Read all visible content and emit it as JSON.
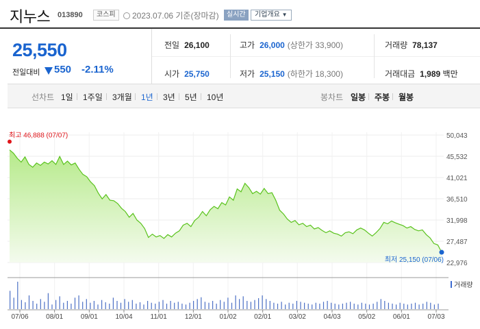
{
  "header": {
    "name": "지누스",
    "code": "013890",
    "market": "코스피",
    "date": "2023.07.06 기준(장마감)",
    "realtime": "실시간",
    "company_info": "기업개요"
  },
  "summary": {
    "price": "25,550",
    "prev_label": "전일대비",
    "change": "550",
    "change_pct": "-2.11%",
    "direction": "down"
  },
  "stats": {
    "prev_close": {
      "label": "전일",
      "value": "26,100"
    },
    "high": {
      "label": "고가",
      "value": "26,000",
      "sub": "(상한가 33,900)"
    },
    "volume": {
      "label": "거래량",
      "value": "78,137"
    },
    "open": {
      "label": "시가",
      "value": "25,750"
    },
    "low": {
      "label": "저가",
      "value": "25,150",
      "sub": "(하한가 18,300)"
    },
    "amount": {
      "label": "거래대금",
      "value": "1,989",
      "unit": "백만"
    }
  },
  "tabs": {
    "line_label": "선차트",
    "line": [
      "1일",
      "1주일",
      "3개월",
      "1년",
      "3년",
      "5년",
      "10년"
    ],
    "line_active": "1년",
    "candle_label": "봉차트",
    "candle": [
      "일봉",
      "주봉",
      "월봉"
    ]
  },
  "chart_data": {
    "type": "area",
    "ylim": [
      22976,
      50043
    ],
    "y_ticks": [
      "50,043",
      "45,532",
      "41,021",
      "36,510",
      "31,998",
      "27,487",
      "22,976"
    ],
    "x_ticks": [
      "07/06",
      "08/01",
      "09/01",
      "10/04",
      "11/01",
      "12/01",
      "01/02",
      "02/01",
      "03/02",
      "04/03",
      "05/02",
      "06/01",
      "07/03"
    ],
    "max_label": "최고 46,888 (07/07)",
    "min_label": "최저 25,150 (07/06)",
    "volume_label": "거래량",
    "series": [
      {
        "values": [
          46888,
          46200,
          45100,
          44300,
          45400,
          43800,
          43200,
          44100,
          43600,
          44300,
          43900,
          44600,
          43800,
          45500,
          43800,
          44500,
          43700,
          44100,
          42800,
          41700,
          41200,
          40100,
          39300,
          37700,
          36500,
          37400,
          36200,
          36100,
          35500,
          34500,
          33800,
          32600,
          33400,
          32000,
          31300,
          30200,
          28300,
          29000,
          28400,
          28700,
          28100,
          28900,
          28400,
          29200,
          29700,
          30900,
          31300,
          30600,
          31900,
          32600,
          33800,
          32900,
          34200,
          34900,
          34400,
          35700,
          35200,
          36900,
          36200,
          38600,
          38000,
          39800,
          38900,
          37600,
          38100,
          37500,
          38700,
          37600,
          37800,
          36200,
          34100,
          33300,
          32200,
          31500,
          31900,
          31000,
          31300,
          30600,
          30900,
          30100,
          30400,
          29800,
          29300,
          29700,
          29200,
          29000,
          28600,
          29300,
          29500,
          29100,
          29900,
          30300,
          29900,
          29200,
          28600,
          29300,
          30200,
          31500,
          31200,
          31800,
          31400,
          31100,
          30800,
          30300,
          30600,
          30000,
          29700,
          29900,
          28900,
          28200,
          27000,
          26700,
          25150
        ]
      }
    ],
    "volume": [
      40,
      25,
      60,
      20,
      15,
      30,
      18,
      12,
      22,
      16,
      35,
      10,
      20,
      28,
      14,
      18,
      12,
      25,
      30,
      16,
      22,
      14,
      18,
      10,
      20,
      15,
      12,
      25,
      18,
      14,
      22,
      16,
      20,
      12,
      15,
      10,
      18,
      14,
      12,
      16,
      20,
      12,
      18,
      14,
      16,
      12,
      10,
      14,
      18,
      22,
      26,
      16,
      14,
      18,
      12,
      20,
      16,
      25,
      14,
      30,
      22,
      28,
      18,
      16,
      20,
      24,
      30,
      22,
      18,
      14,
      12,
      16,
      10,
      14,
      12,
      18,
      16,
      14,
      12,
      10,
      14,
      12,
      16,
      18,
      14,
      12,
      10,
      12,
      14,
      16,
      12,
      10,
      14,
      12,
      10,
      12,
      16,
      22,
      18,
      14,
      12,
      10,
      14,
      12,
      10,
      12,
      14,
      10,
      12,
      16,
      14,
      10,
      12
    ]
  }
}
